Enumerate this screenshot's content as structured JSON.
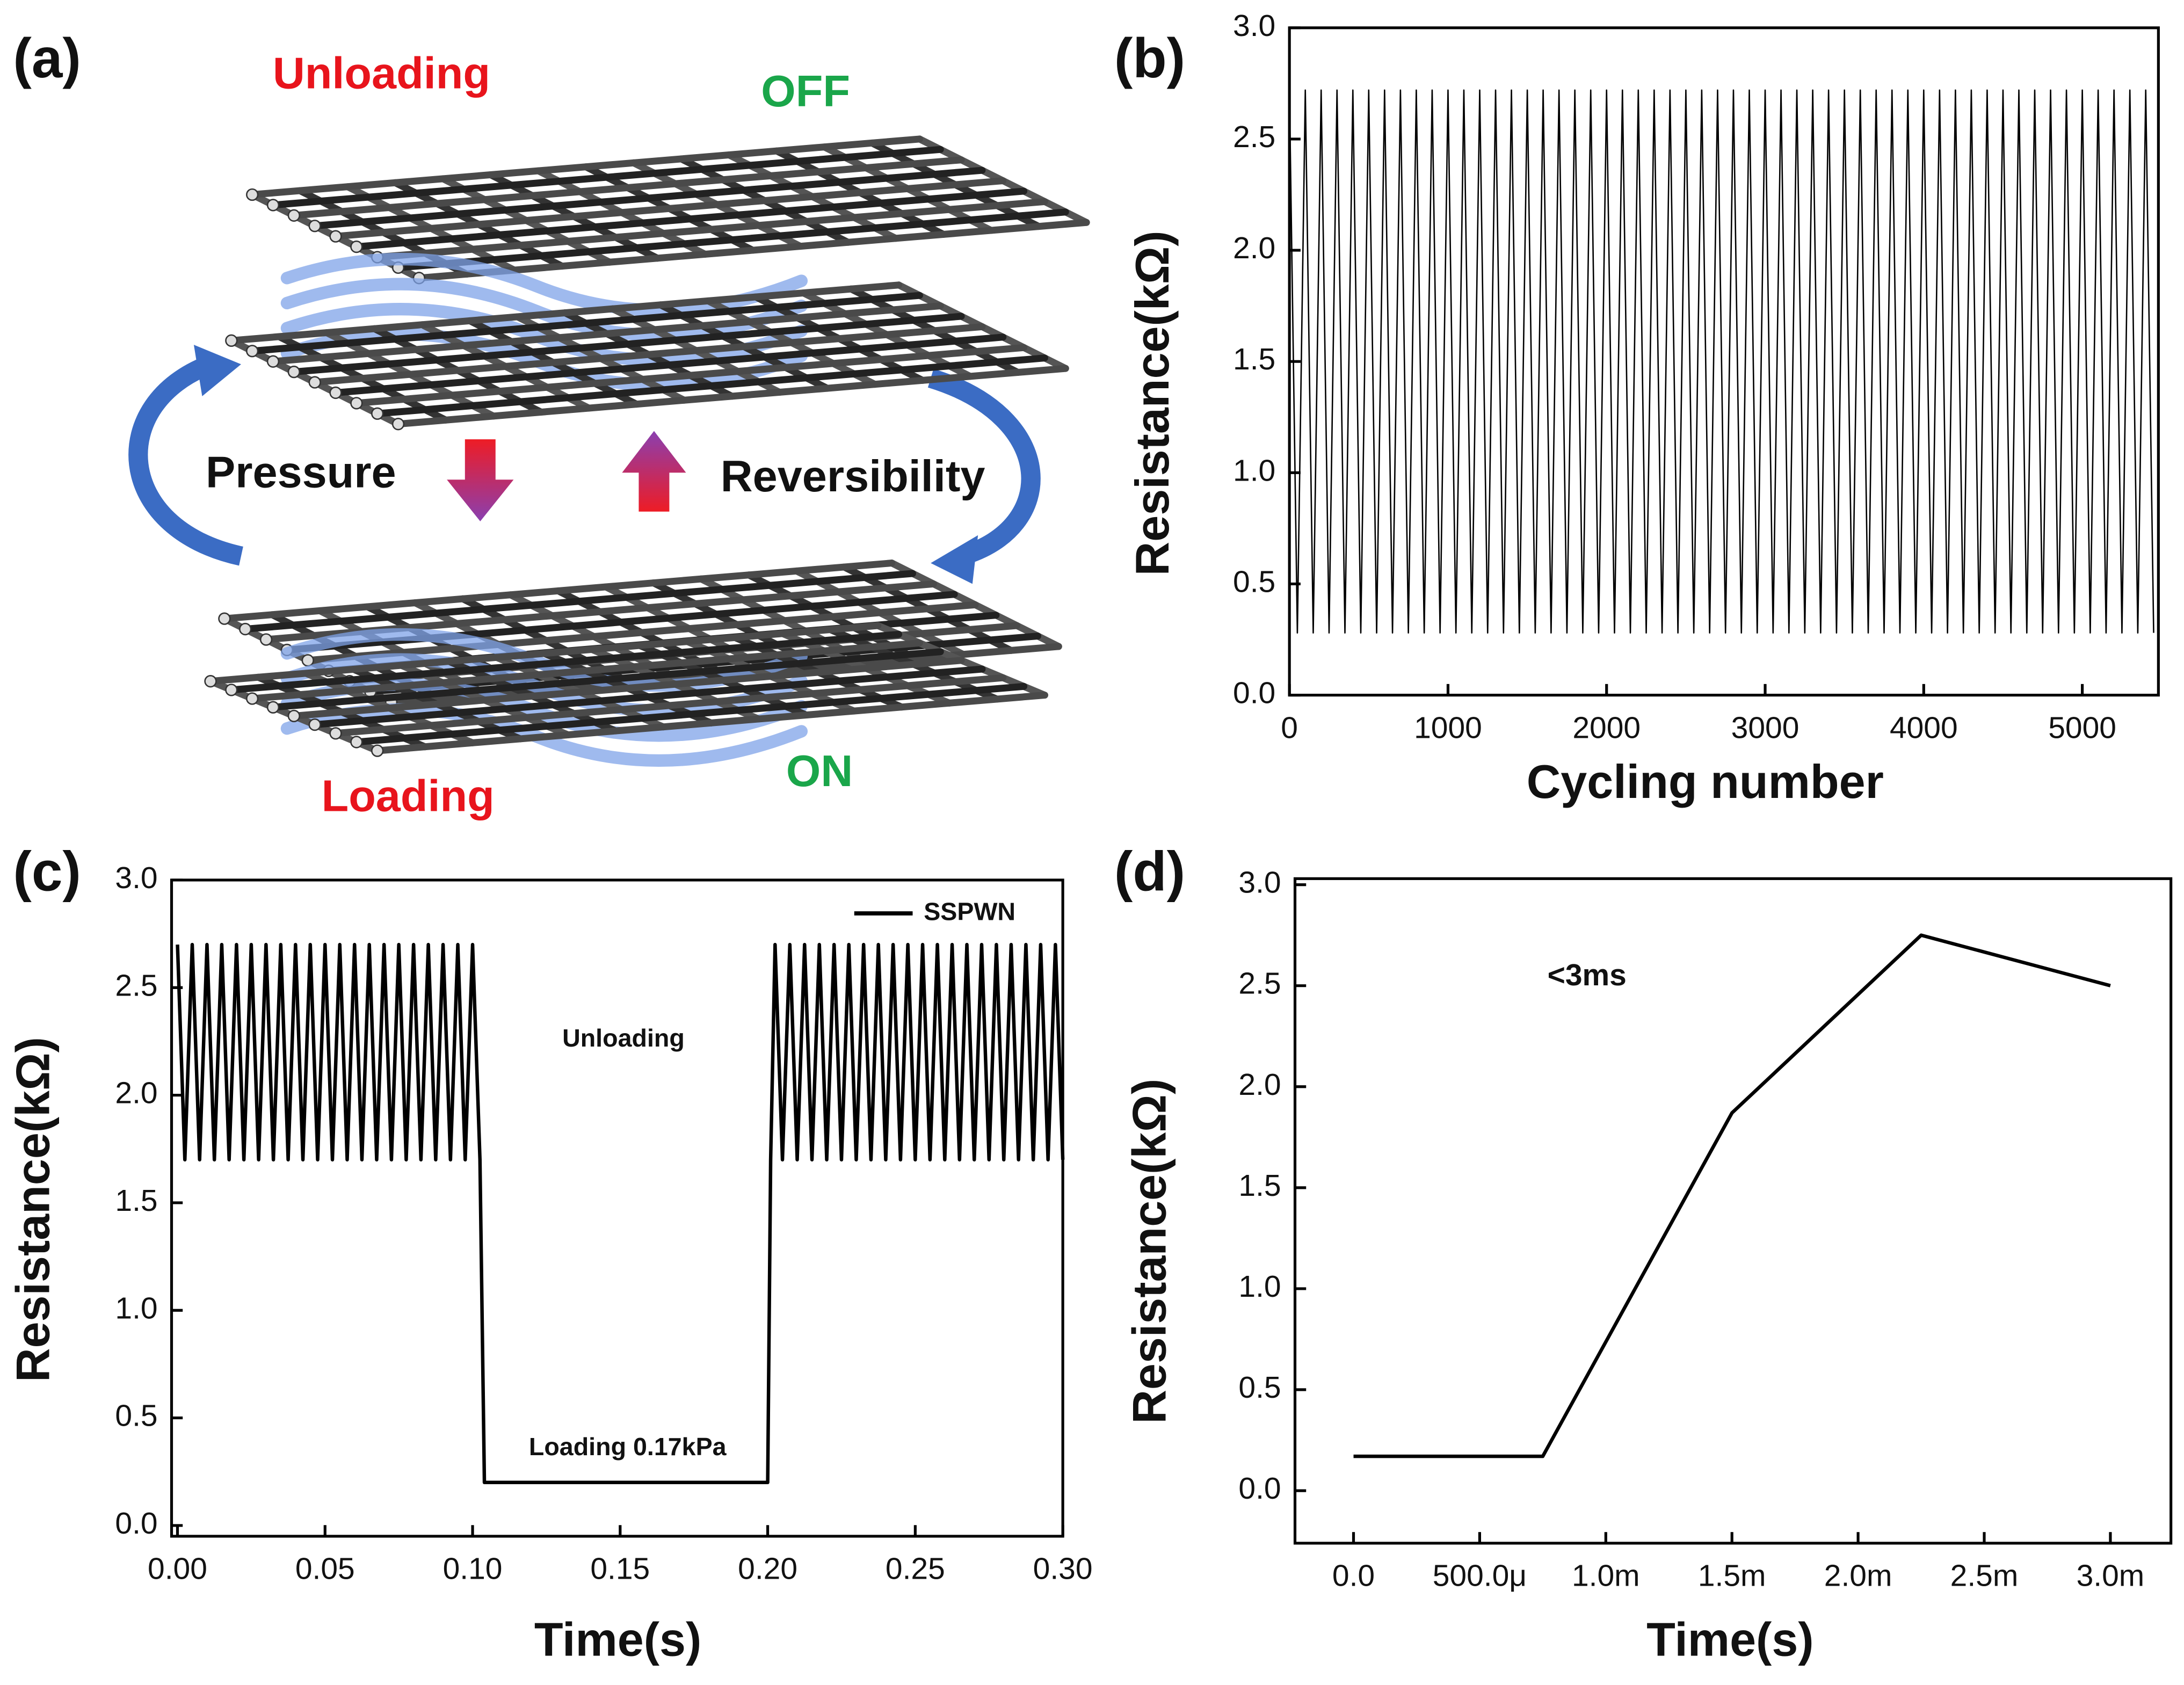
{
  "diagram": {
    "panel_label": "(a)",
    "labels": {
      "unloading": "Unloading",
      "off": "OFF",
      "pressure": "Pressure",
      "reversibility": "Reversibility",
      "loading": "Loading",
      "on": "ON"
    }
  },
  "chart_data": [
    {
      "type": "line",
      "panel_label": "(b)",
      "x_label": "Cycling number",
      "y_label": "Resistance(kΩ)",
      "xlim": [
        0,
        5480
      ],
      "xticks": [
        0,
        1000,
        2000,
        3000,
        4000,
        5000
      ],
      "ylim": [
        0,
        3
      ],
      "yticks": [
        {
          "value": 0,
          "label": "0.0"
        },
        0.5,
        {
          "value": 1,
          "label": "1.0"
        },
        1.5,
        {
          "value": 2,
          "label": "2.0"
        },
        2.5,
        {
          "value": 3,
          "label": "3.0"
        }
      ],
      "series": [
        {
          "color": "#000000",
          "x": [
            0,
            50,
            100,
            150,
            200,
            250,
            300,
            350,
            400,
            450,
            500,
            550,
            600,
            650,
            700,
            750,
            800,
            850,
            900,
            950,
            1000,
            1050,
            1100,
            1150,
            1200,
            1250,
            1300,
            1350,
            1400,
            1450,
            1500,
            1550,
            1600,
            1650,
            1700,
            1750,
            1800,
            1850,
            1900,
            1950,
            2000,
            2050,
            2100,
            2150,
            2200,
            2250,
            2300,
            2350,
            2400,
            2450,
            2500,
            2550,
            2600,
            2650,
            2700,
            2750,
            2800,
            2850,
            2900,
            2950,
            3000,
            3050,
            3100,
            3150,
            3200,
            3250,
            3300,
            3350,
            3400,
            3450,
            3500,
            3550,
            3600,
            3650,
            3700,
            3750,
            3800,
            3850,
            3900,
            3950,
            4000,
            4050,
            4100,
            4150,
            4200,
            4250,
            4300,
            4350,
            4400,
            4450,
            4500,
            4550,
            4600,
            4650,
            4700,
            4750,
            4800,
            4850,
            4900,
            4950,
            5000,
            5050,
            5100,
            5150,
            5200,
            5250,
            5300,
            5350,
            5400,
            5450
          ],
          "values": [
            2.72,
            0.28,
            2.72,
            0.28,
            2.72,
            0.28,
            2.72,
            0.28,
            2.72,
            0.28,
            2.72,
            0.28,
            2.72,
            0.28,
            2.72,
            0.28,
            2.72,
            0.28,
            2.72,
            0.28,
            2.72,
            0.28,
            2.72,
            0.28,
            2.72,
            0.28,
            2.72,
            0.28,
            2.72,
            0.28,
            2.72,
            0.28,
            2.72,
            0.28,
            2.72,
            0.28,
            2.72,
            0.28,
            2.72,
            0.28,
            2.72,
            0.28,
            2.72,
            0.28,
            2.72,
            0.28,
            2.72,
            0.28,
            2.72,
            0.28,
            2.72,
            0.28,
            2.72,
            0.28,
            2.72,
            0.28,
            2.72,
            0.28,
            2.72,
            0.28,
            2.72,
            0.28,
            2.72,
            0.28,
            2.72,
            0.28,
            2.72,
            0.28,
            2.72,
            0.28,
            2.72,
            0.28,
            2.72,
            0.28,
            2.72,
            0.28,
            2.72,
            0.28,
            2.72,
            0.28,
            2.72,
            0.28,
            2.72,
            0.28,
            2.72,
            0.28,
            2.72,
            0.28,
            2.72,
            0.28,
            2.72,
            0.28,
            2.72,
            0.28,
            2.72,
            0.28,
            2.72,
            0.28,
            2.72,
            0.28,
            2.72,
            0.28,
            2.72,
            0.28,
            2.72,
            0.28,
            2.72,
            0.28,
            2.72,
            0.28
          ]
        }
      ]
    },
    {
      "type": "line",
      "panel_label": "(c)",
      "x_label": "Time(s)",
      "y_label": "Resistance(kΩ)",
      "xlim": [
        -0.002,
        0.3
      ],
      "xticks": [
        {
          "value": 0,
          "label": "0.00"
        },
        0.05,
        {
          "value": 0.1,
          "label": "0.10"
        },
        0.15,
        {
          "value": 0.2,
          "label": "0.20"
        },
        0.25,
        {
          "value": 0.3,
          "label": "0.30"
        }
      ],
      "ylim": [
        -0.05,
        3
      ],
      "yticks": [
        {
          "value": 0,
          "label": "0.0"
        },
        0.5,
        {
          "value": 1,
          "label": "1.0"
        },
        1.5,
        {
          "value": 2,
          "label": "2.0"
        },
        2.5,
        {
          "value": 3,
          "label": "3.0"
        }
      ],
      "legend": "upper right",
      "annotations": [
        "Unloading",
        "Loading 0.17kPa"
      ],
      "series": [
        {
          "name": "SSPWN",
          "color": "#000000",
          "x": [
            0,
            0.0025,
            0.005,
            0.0075,
            0.01,
            0.0125,
            0.015,
            0.0175,
            0.02,
            0.0225,
            0.025,
            0.0275,
            0.03,
            0.0325,
            0.035,
            0.0375,
            0.04,
            0.0425,
            0.045,
            0.0475,
            0.05,
            0.0525,
            0.055,
            0.0575,
            0.06,
            0.0625,
            0.065,
            0.0675,
            0.07,
            0.0725,
            0.075,
            0.0775,
            0.08,
            0.0825,
            0.085,
            0.0875,
            0.09,
            0.0925,
            0.095,
            0.0975,
            0.1,
            0.1025,
            0.104,
            0.2,
            0.201,
            0.2025,
            0.205,
            0.2075,
            0.21,
            0.2125,
            0.215,
            0.2175,
            0.22,
            0.2225,
            0.225,
            0.2275,
            0.23,
            0.2325,
            0.235,
            0.2375,
            0.24,
            0.2425,
            0.245,
            0.2475,
            0.25,
            0.2525,
            0.255,
            0.2575,
            0.26,
            0.2625,
            0.265,
            0.2675,
            0.27,
            0.2725,
            0.275,
            0.2775,
            0.28,
            0.2825,
            0.285,
            0.2875,
            0.29,
            0.2925,
            0.295,
            0.2975,
            0.3
          ],
          "values": [
            2.7,
            1.7,
            2.7,
            1.7,
            2.7,
            1.7,
            2.7,
            1.7,
            2.7,
            1.7,
            2.7,
            1.7,
            2.7,
            1.7,
            2.7,
            1.7,
            2.7,
            1.7,
            2.7,
            1.7,
            2.7,
            1.7,
            2.7,
            1.7,
            2.7,
            1.7,
            2.7,
            1.7,
            2.7,
            1.7,
            2.7,
            1.7,
            2.7,
            1.7,
            2.7,
            1.7,
            2.7,
            1.7,
            2.7,
            1.7,
            2.7,
            1.7,
            0.2,
            0.2,
            1.7,
            2.7,
            1.7,
            2.7,
            1.7,
            2.7,
            1.7,
            2.7,
            1.7,
            2.7,
            1.7,
            2.7,
            1.7,
            2.7,
            1.7,
            2.7,
            1.7,
            2.7,
            1.7,
            2.7,
            1.7,
            2.7,
            1.7,
            2.7,
            1.7,
            2.7,
            1.7,
            2.7,
            1.7,
            2.7,
            1.7,
            2.7,
            1.7,
            2.7,
            1.7,
            2.7,
            1.7,
            2.7,
            1.7,
            2.7,
            1.7
          ]
        }
      ]
    },
    {
      "type": "line",
      "panel_label": "(d)",
      "x_label": "Time(s)",
      "y_label": "Resistance(kΩ)",
      "xlim": [
        -0.000232,
        0.00324
      ],
      "xticks": [
        {
          "value": 0,
          "label": "0.0"
        },
        {
          "value": 0.0005,
          "label": "500.0μ"
        },
        {
          "value": 0.001,
          "label": "1.0m"
        },
        {
          "value": 0.0015,
          "label": "1.5m"
        },
        {
          "value": 0.002,
          "label": "2.0m"
        },
        {
          "value": 0.0025,
          "label": "2.5m"
        },
        {
          "value": 0.003,
          "label": "3.0m"
        }
      ],
      "ylim": [
        -0.26,
        3.03
      ],
      "yticks": [
        {
          "value": 0,
          "label": "0.0"
        },
        0.5,
        {
          "value": 1,
          "label": "1.0"
        },
        1.5,
        {
          "value": 2,
          "label": "2.0"
        },
        2.5,
        {
          "value": 3,
          "label": "3.0"
        }
      ],
      "annotations": [
        "<3ms"
      ],
      "series": [
        {
          "color": "#000000",
          "x": [
            0,
            0.00075,
            0.0015,
            0.00225,
            0.003
          ],
          "values": [
            0.17,
            0.17,
            1.87,
            2.75,
            2.5
          ]
        }
      ]
    }
  ]
}
